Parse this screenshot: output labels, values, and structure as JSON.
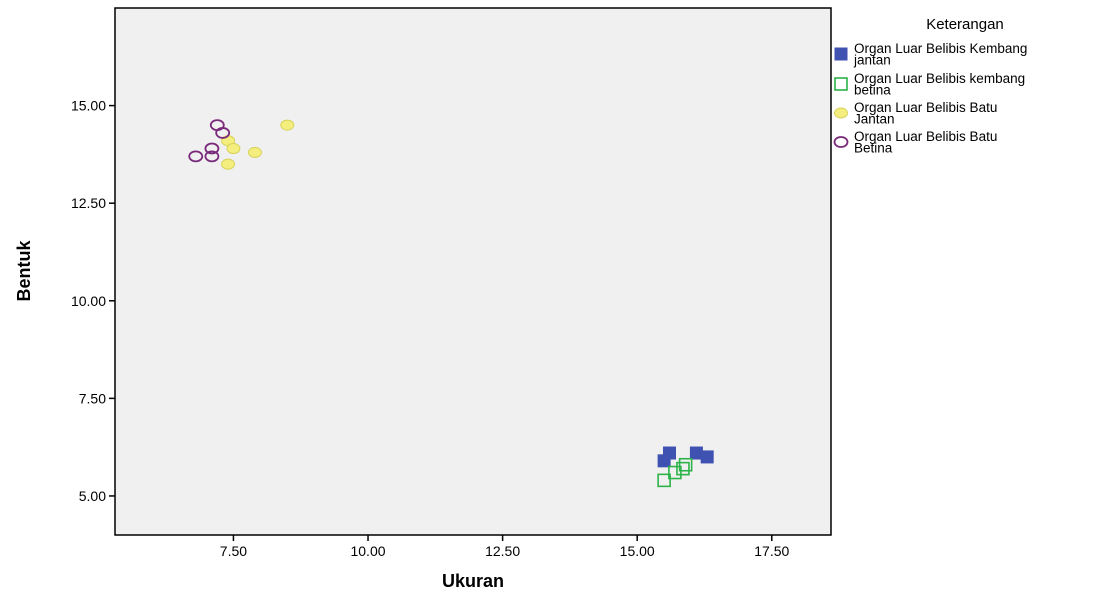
{
  "chart_data": {
    "type": "scatter",
    "xlabel": "Ukuran",
    "ylabel": "Bentuk",
    "xlim": [
      5.3,
      18.6
    ],
    "ylim": [
      4.0,
      17.5
    ],
    "x_ticks": [
      7.5,
      10.0,
      12.5,
      15.0,
      17.5
    ],
    "x_tick_labels": [
      "7.50",
      "10.00",
      "12.50",
      "15.00",
      "17.50"
    ],
    "y_ticks": [
      5.0,
      7.5,
      10.0,
      12.5,
      15.0
    ],
    "y_tick_labels": [
      "5.00",
      "7.50",
      "10.00",
      "12.50",
      "15.00"
    ],
    "grid": false,
    "plot_background": "#f0f0f0",
    "legend": {
      "title": "Keterangan",
      "placement": "right"
    },
    "series": [
      {
        "name": "Organ Luar Belibis Kembang jantan",
        "label_lines": [
          "Organ Luar Belibis Kembang",
          "jantan"
        ],
        "marker": "square-filled",
        "color": "#3f51b1",
        "points": [
          [
            15.5,
            5.9
          ],
          [
            15.6,
            6.1
          ],
          [
            16.1,
            6.1
          ],
          [
            16.3,
            6.0
          ]
        ]
      },
      {
        "name": "Organ Luar Belibis kembang betina",
        "label_lines": [
          "Organ Luar Belibis kembang",
          "betina"
        ],
        "marker": "square-open",
        "color": "#2db34a",
        "points": [
          [
            15.5,
            5.4
          ],
          [
            15.7,
            5.6
          ],
          [
            15.85,
            5.7
          ],
          [
            15.9,
            5.8
          ]
        ]
      },
      {
        "name": "Organ Luar Belibis Batu Jantan",
        "label_lines": [
          "Organ Luar Belibis Batu",
          "Jantan"
        ],
        "marker": "circle-filled",
        "color": "#f3ee7e",
        "stroke": "#d9d25a",
        "points": [
          [
            7.4,
            14.1
          ],
          [
            7.5,
            13.9
          ],
          [
            7.9,
            13.8
          ],
          [
            7.4,
            13.5
          ],
          [
            8.5,
            14.5
          ]
        ]
      },
      {
        "name": "Organ Luar Belibis Batu Betina",
        "label_lines": [
          "Organ Luar Belibis Batu",
          "Betina"
        ],
        "marker": "circle-open",
        "color": "#7a2a7a",
        "points": [
          [
            7.2,
            14.5
          ],
          [
            7.3,
            14.3
          ],
          [
            7.1,
            13.9
          ],
          [
            6.8,
            13.7
          ],
          [
            7.1,
            13.7
          ]
        ]
      }
    ]
  }
}
